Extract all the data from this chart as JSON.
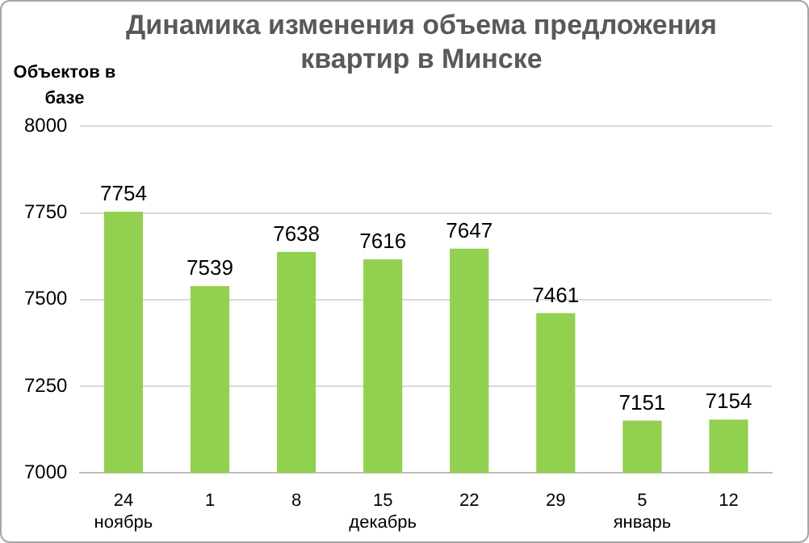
{
  "chart_data": {
    "type": "bar",
    "title": "Динамика изменения объема предложения квартир в Минске",
    "ylabel": "Объектов в базе",
    "categories": [
      "24\nноябрь",
      "1",
      "8",
      "15\nдекабрь",
      "22",
      "29",
      "5\nянварь",
      "12"
    ],
    "values": [
      7754,
      7539,
      7638,
      7616,
      7647,
      7461,
      7151,
      7154
    ],
    "color": "#92d050",
    "ylim": [
      7000,
      8000
    ],
    "yticks": [
      7000,
      7250,
      7500,
      7750,
      8000
    ],
    "grid": "y",
    "data_labels": true
  }
}
